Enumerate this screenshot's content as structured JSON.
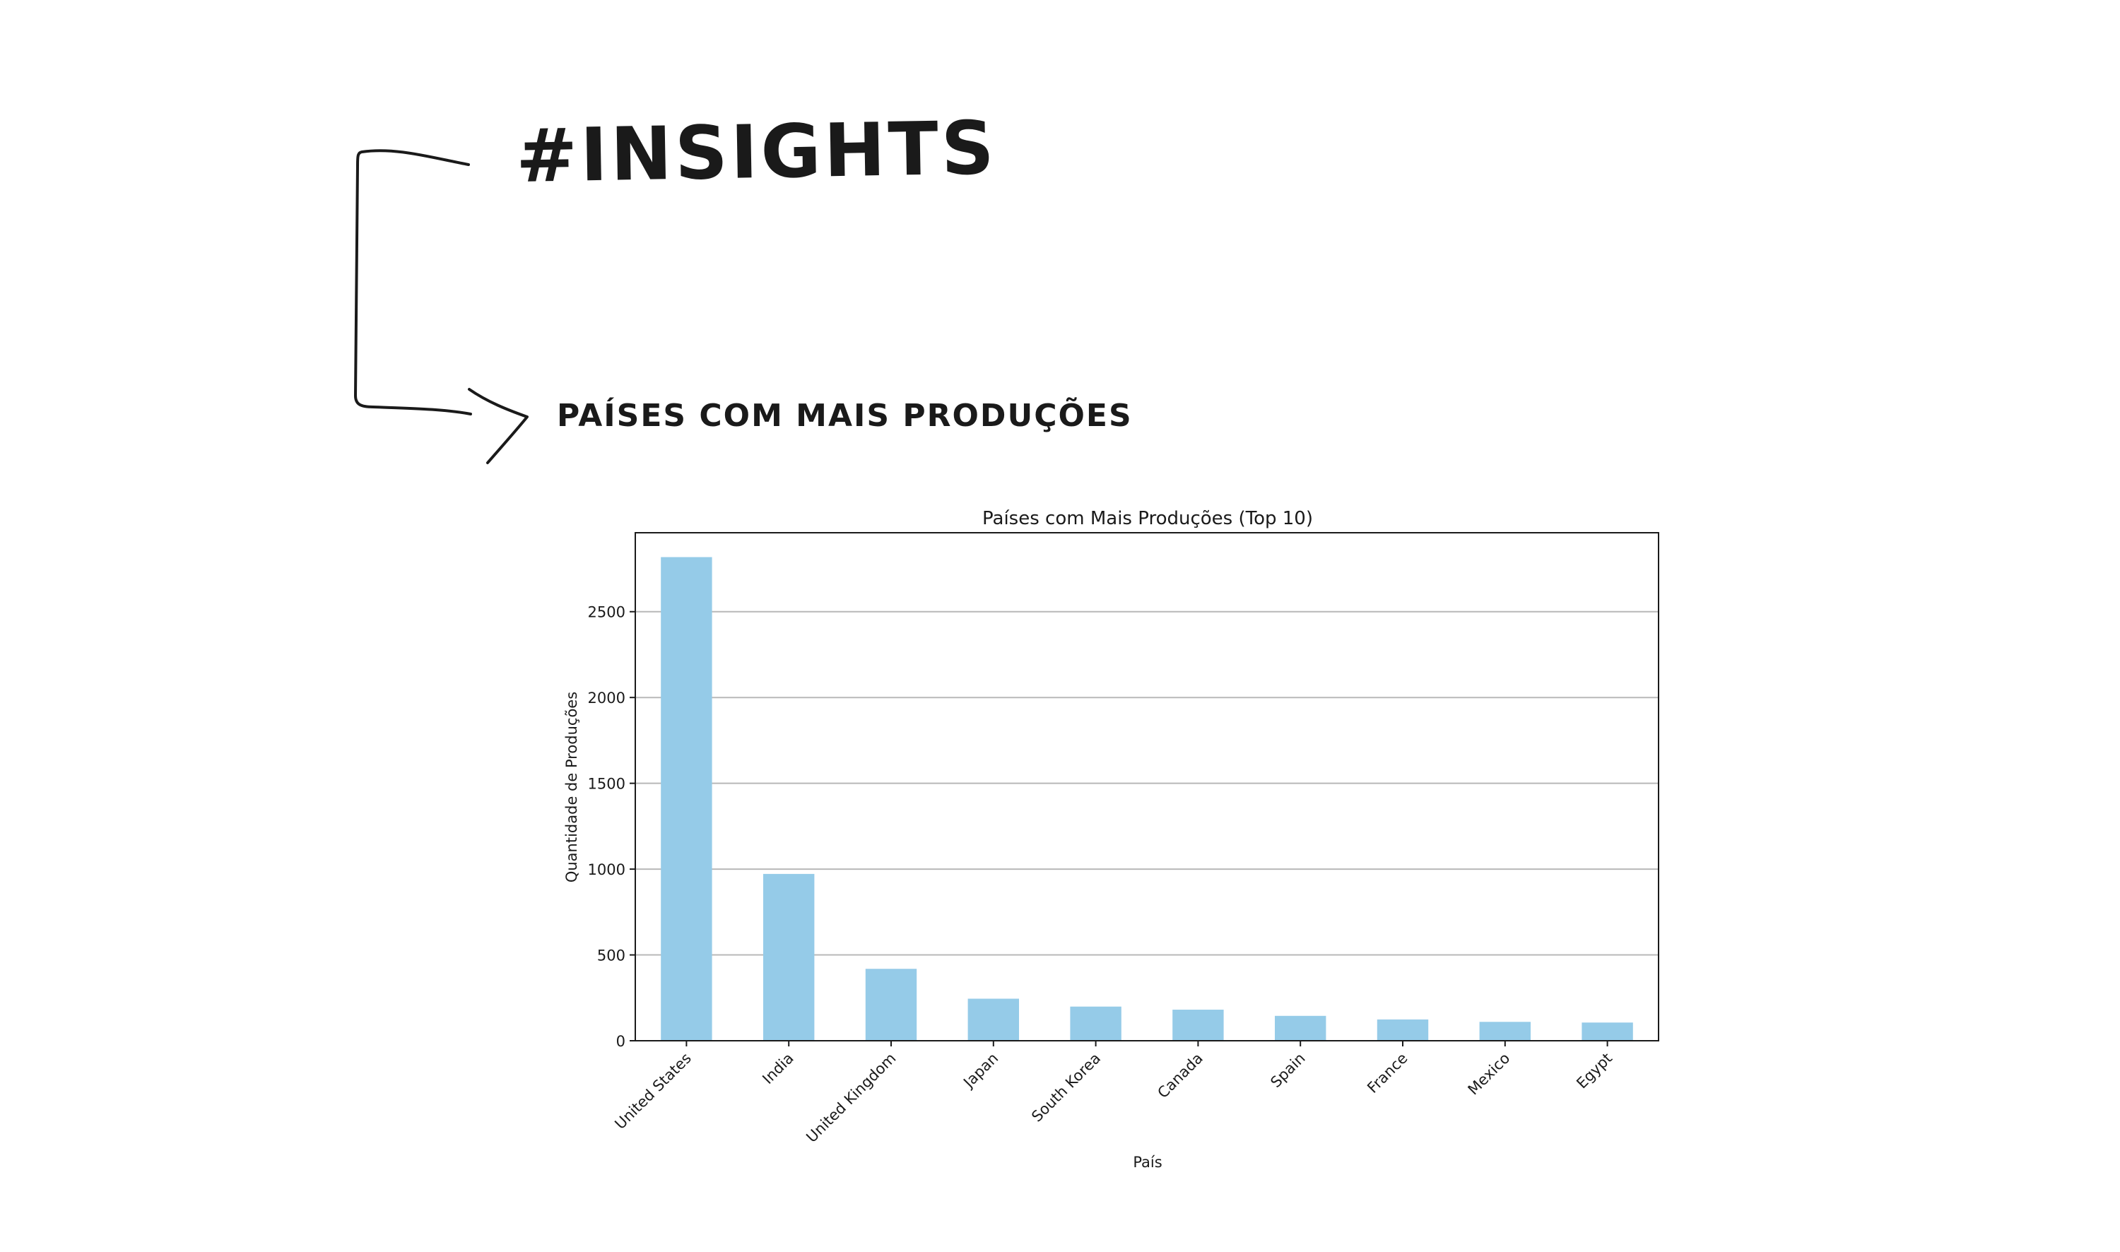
{
  "page": {
    "heading": "#INSIGHTS",
    "subheading": "PAÍSES COM MAIS PRODUÇÕES"
  },
  "chart_data": {
    "type": "bar",
    "title": "Países com Mais Produções (Top 10)",
    "xlabel": "País",
    "ylabel": "Quantidade de Produções",
    "categories": [
      "United States",
      "India",
      "United Kingdom",
      "Japan",
      "South Korea",
      "Canada",
      "Spain",
      "France",
      "Mexico",
      "Egypt"
    ],
    "values": [
      2818,
      972,
      419,
      245,
      199,
      181,
      145,
      124,
      110,
      106
    ],
    "ylim": [
      0,
      2960
    ],
    "yticks": [
      0,
      500,
      1000,
      1500,
      2000,
      2500
    ],
    "grid": "horizontal",
    "bar_color": "#95cbe8"
  }
}
